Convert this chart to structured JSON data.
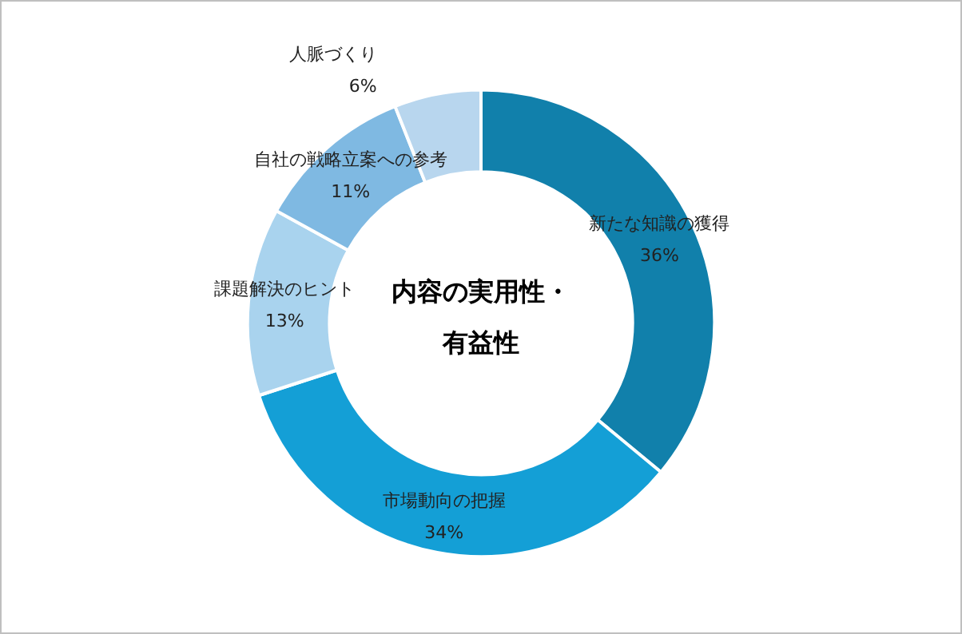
{
  "chart_data": {
    "type": "donut",
    "title": "内容の実用性・有益性",
    "categories": [
      "新たな知識の獲得",
      "市場動向の把握",
      "課題解決のヒント",
      "自社の戦略立案への参考",
      "人脈づくり"
    ],
    "values": [
      36,
      34,
      13,
      11,
      6
    ],
    "colors": [
      "#1180ab",
      "#149fd6",
      "#a9d3ee",
      "#7fb9e2",
      "#b8d6ee"
    ],
    "value_labels": [
      "36%",
      "34%",
      "13%",
      "11%",
      "6%"
    ],
    "legend": false
  }
}
